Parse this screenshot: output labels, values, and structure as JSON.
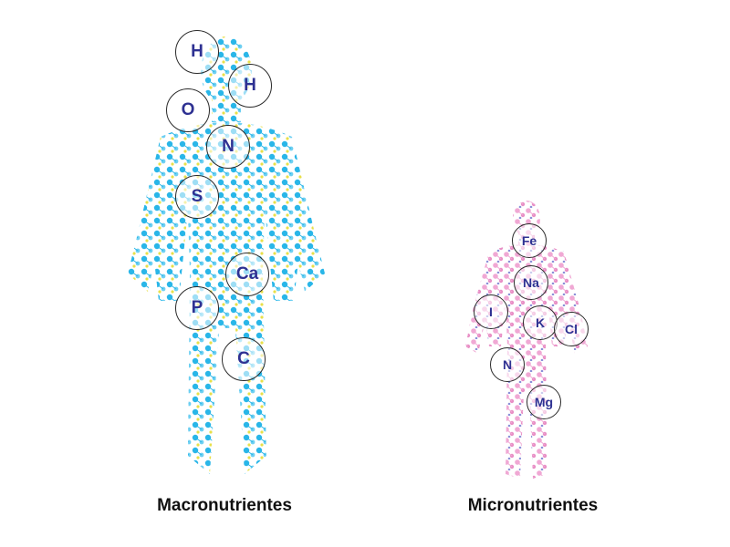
{
  "colors": {
    "macro_body": "#29b6e8",
    "macro_accent": "#e8e04a",
    "micro_body": "#f0a8d4",
    "micro_accent": "#8a8fd8",
    "element_text": "#2e3192"
  },
  "macro": {
    "caption": "Macronutrientes",
    "elements": [
      "H",
      "H",
      "O",
      "N",
      "S",
      "Ca",
      "P",
      "C"
    ]
  },
  "micro": {
    "caption": "Micronutrientes",
    "elements": [
      "Fe",
      "Na",
      "I",
      "K",
      "Cl",
      "N",
      "Mg"
    ]
  }
}
